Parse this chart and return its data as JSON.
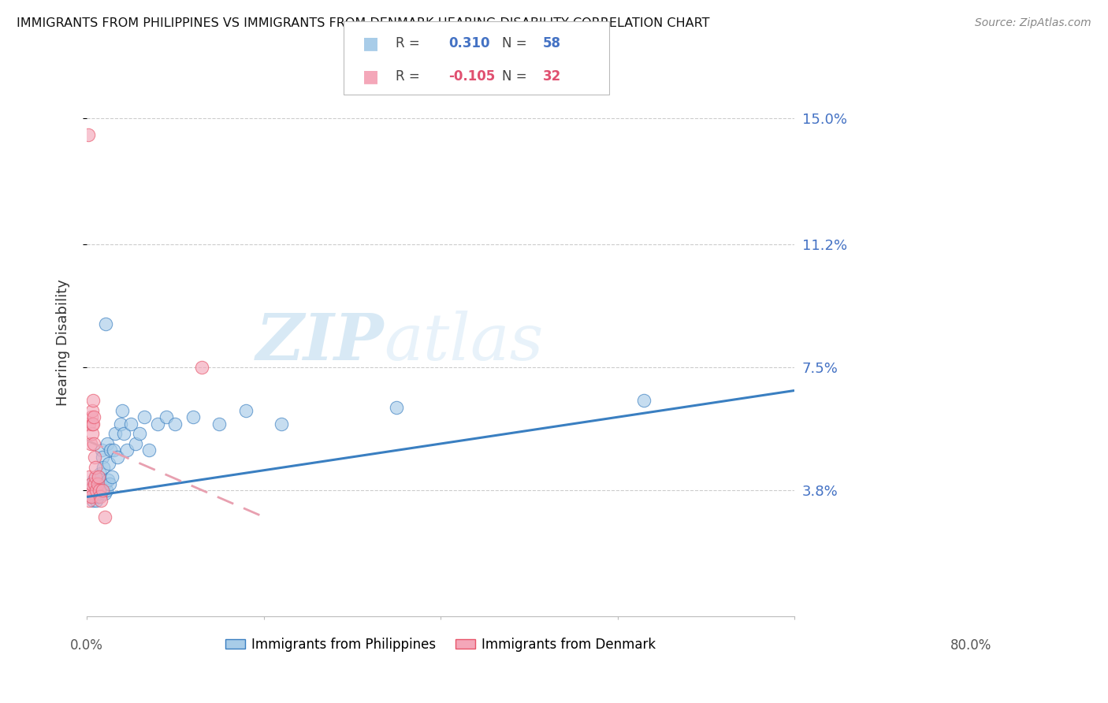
{
  "title": "IMMIGRANTS FROM PHILIPPINES VS IMMIGRANTS FROM DENMARK HEARING DISABILITY CORRELATION CHART",
  "source": "Source: ZipAtlas.com",
  "ylabel": "Hearing Disability",
  "yticks": [
    0.038,
    0.075,
    0.112,
    0.15
  ],
  "ytick_labels": [
    "3.8%",
    "7.5%",
    "11.2%",
    "15.0%"
  ],
  "xlim": [
    0.0,
    0.8
  ],
  "ylim": [
    0.0,
    0.165
  ],
  "color_blue": "#a8cce8",
  "color_pink": "#f4a7b9",
  "color_blue_line": "#3a7fc1",
  "color_pink_line": "#e8556a",
  "color_pink_line_dash": "#e8a0b0",
  "watermark_zip": "ZIP",
  "watermark_atlas": "atlas",
  "philippines_x": [
    0.003,
    0.004,
    0.005,
    0.005,
    0.006,
    0.007,
    0.007,
    0.008,
    0.008,
    0.009,
    0.009,
    0.01,
    0.01,
    0.011,
    0.011,
    0.012,
    0.012,
    0.013,
    0.013,
    0.014,
    0.015,
    0.015,
    0.016,
    0.017,
    0.018,
    0.018,
    0.019,
    0.02,
    0.02,
    0.021,
    0.022,
    0.023,
    0.024,
    0.025,
    0.026,
    0.027,
    0.028,
    0.03,
    0.032,
    0.035,
    0.038,
    0.04,
    0.042,
    0.045,
    0.05,
    0.055,
    0.06,
    0.065,
    0.07,
    0.08,
    0.09,
    0.1,
    0.12,
    0.15,
    0.18,
    0.22,
    0.35,
    0.63
  ],
  "philippines_y": [
    0.038,
    0.037,
    0.036,
    0.04,
    0.038,
    0.035,
    0.039,
    0.037,
    0.041,
    0.036,
    0.038,
    0.037,
    0.04,
    0.038,
    0.035,
    0.039,
    0.036,
    0.042,
    0.037,
    0.038,
    0.04,
    0.043,
    0.039,
    0.05,
    0.048,
    0.038,
    0.045,
    0.037,
    0.04,
    0.088,
    0.038,
    0.052,
    0.041,
    0.046,
    0.04,
    0.05,
    0.042,
    0.05,
    0.055,
    0.048,
    0.058,
    0.062,
    0.055,
    0.05,
    0.058,
    0.052,
    0.055,
    0.06,
    0.05,
    0.058,
    0.06,
    0.058,
    0.06,
    0.058,
    0.062,
    0.058,
    0.063,
    0.065
  ],
  "denmark_x": [
    0.001,
    0.002,
    0.002,
    0.003,
    0.003,
    0.003,
    0.004,
    0.004,
    0.005,
    0.005,
    0.005,
    0.006,
    0.006,
    0.006,
    0.007,
    0.007,
    0.008,
    0.008,
    0.009,
    0.009,
    0.01,
    0.01,
    0.011,
    0.012,
    0.013,
    0.014,
    0.015,
    0.016,
    0.018,
    0.02,
    0.002,
    0.13
  ],
  "denmark_y": [
    0.036,
    0.037,
    0.038,
    0.035,
    0.042,
    0.058,
    0.038,
    0.052,
    0.036,
    0.04,
    0.06,
    0.055,
    0.058,
    0.062,
    0.058,
    0.065,
    0.052,
    0.06,
    0.04,
    0.048,
    0.042,
    0.045,
    0.038,
    0.04,
    0.042,
    0.038,
    0.036,
    0.035,
    0.038,
    0.03,
    0.145,
    0.075
  ],
  "blue_trend_x": [
    0.0,
    0.8
  ],
  "blue_trend_y": [
    0.036,
    0.068
  ],
  "pink_trend_x": [
    0.0,
    0.2
  ],
  "pink_trend_y": [
    0.053,
    0.03
  ]
}
